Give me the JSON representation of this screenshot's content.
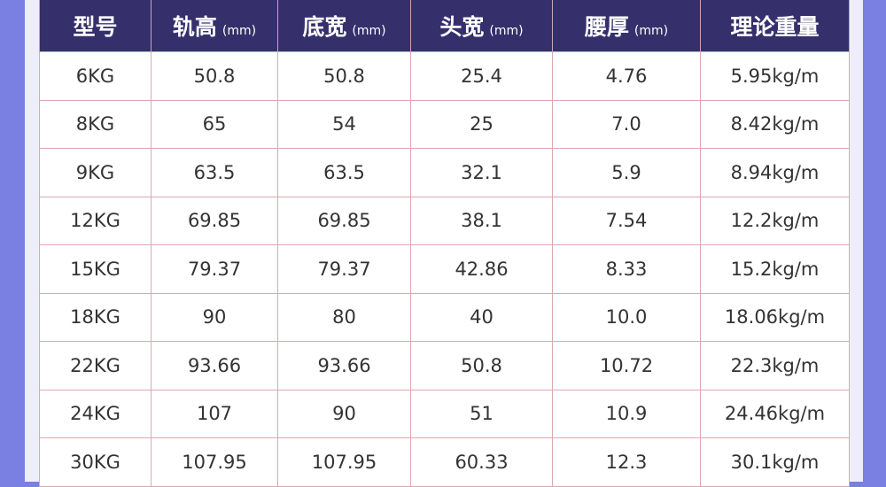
{
  "columns": [
    {
      "label": "型号",
      "unit": ""
    },
    {
      "label": "轨高",
      "unit": "(mm)"
    },
    {
      "label": "底宽",
      "unit": "(mm)"
    },
    {
      "label": "头宽",
      "unit": "(mm)"
    },
    {
      "label": "腰厚",
      "unit": "(mm)"
    },
    {
      "label": "理论重量",
      "unit": ""
    }
  ],
  "rows": [
    [
      "6KG",
      "50.8",
      "50.8",
      "25.4",
      "4.76",
      "5.95kg/m"
    ],
    [
      "8KG",
      "65",
      "54",
      "25",
      "7.0",
      "8.42kg/m"
    ],
    [
      "9KG",
      "63.5",
      "63.5",
      "32.1",
      "5.9",
      "8.94kg/m"
    ],
    [
      "12KG",
      "69.85",
      "69.85",
      "38.1",
      "7.54",
      "12.2kg/m"
    ],
    [
      "15KG",
      "79.37",
      "79.37",
      "42.86",
      "8.33",
      "15.2kg/m"
    ],
    [
      "18KG",
      "90",
      "80",
      "40",
      "10.0",
      "18.06kg/m"
    ],
    [
      "22KG",
      "93.66",
      "93.66",
      "50.8",
      "10.72",
      "22.3kg/m"
    ],
    [
      "24KG",
      "107",
      "90",
      "51",
      "10.9",
      "24.46kg/m"
    ],
    [
      "30KG",
      "107.95",
      "107.95",
      "60.33",
      "12.3",
      "30.1kg/m"
    ]
  ],
  "colors": {
    "header_bg": "#35306b",
    "page_bg": "#7a7fe2",
    "border": "#dba9b2"
  }
}
